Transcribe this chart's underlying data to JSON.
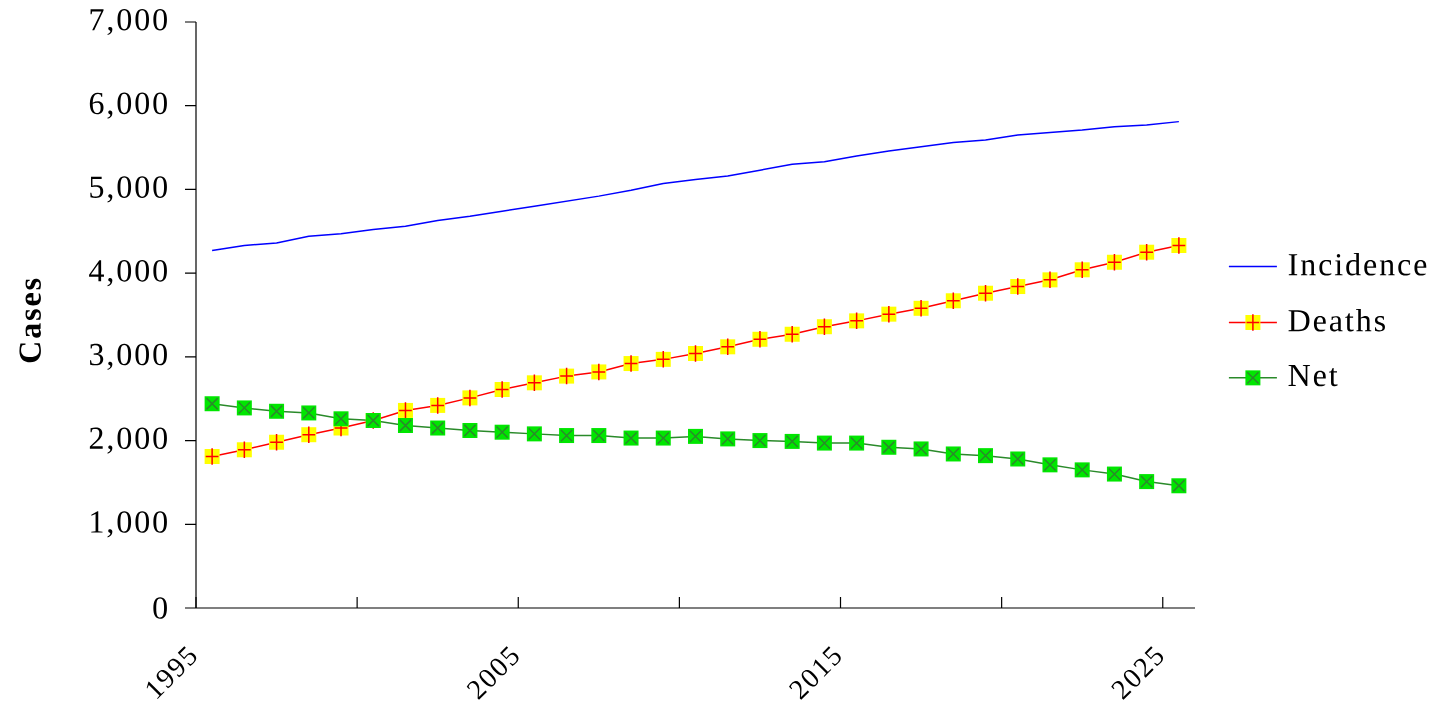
{
  "chart_data": {
    "type": "line",
    "ylabel": "Cases",
    "x": [
      1995.5,
      1996.5,
      1997.5,
      1998.5,
      1999.5,
      2000.5,
      2001.5,
      2002.5,
      2003.5,
      2004.5,
      2005.5,
      2006.5,
      2007.5,
      2008.5,
      2009.5,
      2010.5,
      2011.5,
      2012.5,
      2013.5,
      2014.5,
      2015.5,
      2016.5,
      2017.5,
      2018.5,
      2019.5,
      2020.5,
      2021.5,
      2022.5,
      2023.5,
      2024.5,
      2025.5
    ],
    "xlim": [
      1995,
      2026
    ],
    "xticks": [
      1995,
      {
        "value": 2000,
        "label": null
      },
      2005,
      {
        "value": 2010,
        "label": null
      },
      2015,
      {
        "value": 2020,
        "label": null
      },
      2025
    ],
    "ylim": [
      0,
      7000
    ],
    "yticks": [
      0,
      {
        "value": 1000,
        "label": "1,000"
      },
      {
        "value": 2000,
        "label": "2,000"
      },
      {
        "value": 3000,
        "label": "3,000"
      },
      {
        "value": 4000,
        "label": "4,000"
      },
      {
        "value": 5000,
        "label": "5,000"
      },
      {
        "value": 6000,
        "label": "6,000"
      },
      {
        "value": 7000,
        "label": "7,000"
      }
    ],
    "legend": "right",
    "series": [
      {
        "name": "Incidence",
        "color": "#0000ff",
        "marker": "none",
        "values": [
          4270,
          4330,
          4360,
          4440,
          4470,
          4520,
          4560,
          4630,
          4680,
          4740,
          4800,
          4860,
          4920,
          4990,
          5070,
          5120,
          5160,
          5230,
          5300,
          5330,
          5400,
          5460,
          5510,
          5560,
          5590,
          5650,
          5680,
          5710,
          5750,
          5770,
          5810
        ]
      },
      {
        "name": "Deaths",
        "color": "#ff0000",
        "marker": "square",
        "colors": [
          "#ffff00",
          "#ffff00",
          "#ffff00",
          "#ffff00",
          "#ffff00",
          "#ffff00",
          "#ffff00",
          "#ffff00",
          "#ffff00",
          "#ffff00",
          "#ffff00",
          "#ffff00",
          "#ffff00",
          "#ffff00",
          "#ffff00",
          "#ffff00",
          "#ffff00",
          "#ffff00",
          "#ffff00",
          "#ffff00",
          "#ffff00",
          "#ffff00",
          "#ffff00",
          "#ffff00",
          "#ffff00",
          "#ffff00",
          "#ffff00",
          "#ffff00",
          "#ffff00",
          "#ffff00",
          "#ffff00"
        ],
        "values": [
          1810,
          1890,
          1980,
          2070,
          2150,
          2240,
          2360,
          2420,
          2510,
          2610,
          2690,
          2770,
          2820,
          2920,
          2970,
          3040,
          3120,
          3210,
          3270,
          3360,
          3430,
          3510,
          3580,
          3670,
          3760,
          3840,
          3920,
          4040,
          4130,
          4250,
          4330
        ]
      },
      {
        "name": "Net",
        "color": "#2a8a2a",
        "marker": "square",
        "colors": [
          "#00e600",
          "#00e600",
          "#00e600",
          "#00e600",
          "#00e600",
          "#00e600",
          "#00e600",
          "#00e600",
          "#00e600",
          "#00e600",
          "#00e600",
          "#00e600",
          "#00e600",
          "#00e600",
          "#00e600",
          "#00e600",
          "#00e600",
          "#00e600",
          "#00e600",
          "#00e600",
          "#00e600",
          "#00e600",
          "#00e600",
          "#00e600",
          "#00e600",
          "#00e600",
          "#00e600",
          "#00e600",
          "#00e600",
          "#00e600",
          "#00e600"
        ],
        "values": [
          2440,
          2390,
          2350,
          2330,
          2260,
          2240,
          2180,
          2150,
          2120,
          2100,
          2080,
          2060,
          2060,
          2030,
          2030,
          2050,
          2020,
          2000,
          1990,
          1970,
          1970,
          1920,
          1900,
          1840,
          1820,
          1780,
          1710,
          1650,
          1600,
          1510,
          1460
        ]
      }
    ]
  }
}
